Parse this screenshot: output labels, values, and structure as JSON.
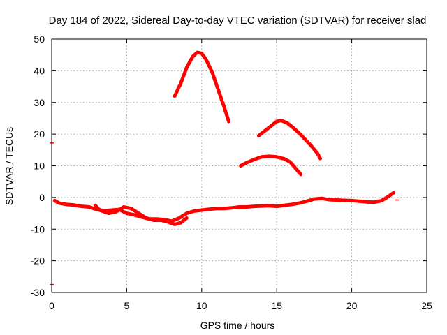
{
  "chart_data": {
    "type": "line",
    "title": "Day 184 of 2022, Sidereal Day-to-day VTEC variation (SDTVAR) for receiver slad",
    "xlabel": "GPS time / hours",
    "ylabel": "SDTVAR / TECUs",
    "xlim": [
      0,
      25
    ],
    "ylim": [
      -30,
      50
    ],
    "grid": true,
    "x_ticks": [
      "0",
      "5",
      "10",
      "15",
      "20",
      "25"
    ],
    "y_ticks": [
      "-30",
      "-20",
      "-10",
      "0",
      "10",
      "20",
      "30",
      "40",
      "50"
    ],
    "color": "#ff0000",
    "series": [
      {
        "name": "main-trace",
        "points": [
          [
            0.2,
            -1
          ],
          [
            0.5,
            -1.8
          ],
          [
            1,
            -2.2
          ],
          [
            1.5,
            -2.4
          ],
          [
            2,
            -2.8
          ],
          [
            2.5,
            -3
          ],
          [
            3,
            -3.8
          ],
          [
            3.5,
            -4.2
          ],
          [
            4,
            -4
          ],
          [
            4.5,
            -3.8
          ],
          [
            5,
            -5
          ],
          [
            5.5,
            -5.5
          ],
          [
            6,
            -6.2
          ],
          [
            6.5,
            -6.8
          ],
          [
            7,
            -6.8
          ],
          [
            7.5,
            -7
          ],
          [
            8,
            -7.5
          ],
          [
            8.5,
            -6.5
          ],
          [
            9,
            -5
          ],
          [
            9.5,
            -4.3
          ],
          [
            10,
            -4
          ],
          [
            10.5,
            -3.7
          ],
          [
            11,
            -3.5
          ],
          [
            11.5,
            -3.5
          ],
          [
            12,
            -3.3
          ],
          [
            12.5,
            -3
          ],
          [
            13,
            -3
          ],
          [
            13.5,
            -2.8
          ],
          [
            14,
            -2.7
          ],
          [
            14.5,
            -2.6
          ],
          [
            15,
            -2.8
          ],
          [
            15.5,
            -2.5
          ],
          [
            16,
            -2.2
          ],
          [
            16.5,
            -1.8
          ],
          [
            17,
            -1.2
          ],
          [
            17.5,
            -0.5
          ],
          [
            18,
            -0.3
          ],
          [
            18.5,
            -0.7
          ],
          [
            19,
            -0.8
          ],
          [
            19.5,
            -0.9
          ],
          [
            20,
            -1
          ],
          [
            20.5,
            -1.2
          ],
          [
            21,
            -1.4
          ],
          [
            21.5,
            -1.5
          ],
          [
            22,
            -1
          ],
          [
            22.5,
            0.5
          ],
          [
            22.8,
            1.5
          ]
        ]
      },
      {
        "name": "lower-trace",
        "points": [
          [
            2.9,
            -2.5
          ],
          [
            3.2,
            -4
          ],
          [
            3.8,
            -5
          ],
          [
            4.3,
            -4.5
          ],
          [
            4.8,
            -3
          ],
          [
            5.3,
            -3.5
          ],
          [
            5.8,
            -5
          ],
          [
            6.3,
            -6.5
          ],
          [
            6.8,
            -7.2
          ],
          [
            7.3,
            -7.2
          ],
          [
            7.8,
            -7.8
          ],
          [
            8.2,
            -8.5
          ],
          [
            8.6,
            -8
          ],
          [
            9,
            -6.5
          ]
        ]
      },
      {
        "name": "arc-peak-45",
        "points": [
          [
            8.2,
            32
          ],
          [
            8.6,
            36
          ],
          [
            9,
            41
          ],
          [
            9.4,
            44.5
          ],
          [
            9.7,
            45.8
          ],
          [
            10,
            45.5
          ],
          [
            10.3,
            43.5
          ],
          [
            10.7,
            39.5
          ],
          [
            11.1,
            34
          ],
          [
            11.5,
            28.5
          ],
          [
            11.8,
            24
          ]
        ]
      },
      {
        "name": "arc-peak-24",
        "points": [
          [
            13.8,
            19.5
          ],
          [
            14.2,
            21
          ],
          [
            14.6,
            22.5
          ],
          [
            15,
            24
          ],
          [
            15.3,
            24.3
          ],
          [
            15.7,
            23.5
          ],
          [
            16.1,
            22
          ],
          [
            16.5,
            20.3
          ],
          [
            16.9,
            18.3
          ],
          [
            17.3,
            16.3
          ],
          [
            17.7,
            14
          ],
          [
            17.9,
            12.3
          ]
        ]
      },
      {
        "name": "arc-peak-13",
        "points": [
          [
            12.6,
            10
          ],
          [
            13,
            11
          ],
          [
            13.5,
            12
          ],
          [
            14,
            12.8
          ],
          [
            14.5,
            13
          ],
          [
            15,
            12.8
          ],
          [
            15.5,
            12.2
          ],
          [
            15.9,
            11.2
          ],
          [
            16.2,
            9.5
          ],
          [
            16.6,
            7.3
          ]
        ]
      }
    ],
    "outliers": [
      [
        0,
        17.2
      ],
      [
        0,
        -27.5
      ],
      [
        23,
        -0.8
      ]
    ]
  }
}
